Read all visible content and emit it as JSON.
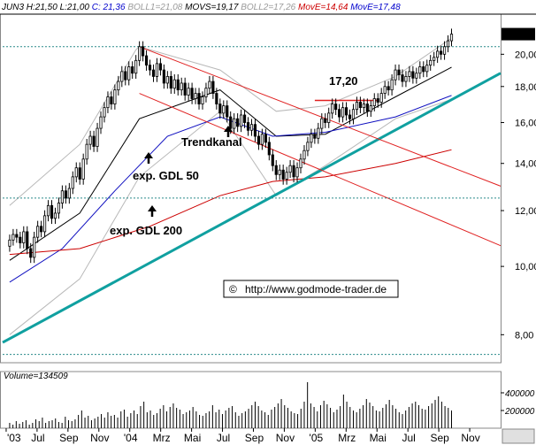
{
  "header": {
    "symbol_prefix": "JUN3 H:",
    "high": "21,50",
    "low_prefix": "L:",
    "low": "21,00",
    "close_prefix": "C:",
    "close": "21,36",
    "boll1": "BOLL1=21,08",
    "movs": "MOVS=19,17",
    "boll2": "BOLL2=17,26",
    "move1": "MovE=14,64",
    "move2": "MovE=17,48"
  },
  "price_box": "21,36",
  "annotations": {
    "trendkanal": "Trendkanal",
    "gdl50": "exp. GDL 50",
    "gdl200": "exp. GDL 200",
    "level": "17,20",
    "copyright": "©",
    "url": "http://www.godmode-trader.de"
  },
  "volume": {
    "label": "Volume=134509",
    "ticks": [
      "400000",
      "200000"
    ],
    "values": [
      60,
      40,
      80,
      50,
      70,
      90,
      40,
      60,
      100,
      80,
      120,
      60,
      80,
      90,
      110,
      70,
      60,
      130,
      90,
      80,
      100,
      150,
      200,
      120,
      140,
      90,
      110,
      130,
      160,
      120,
      180,
      140,
      150,
      120,
      190,
      210,
      130,
      170,
      200,
      160,
      250,
      300,
      180,
      200,
      150,
      170,
      220,
      260,
      190,
      240,
      280,
      230,
      210,
      160,
      180,
      200,
      240,
      190,
      150,
      140,
      170,
      190,
      260,
      180,
      210,
      160,
      200,
      230,
      250,
      180,
      140,
      170,
      190,
      220,
      260,
      300,
      250,
      200,
      180,
      150,
      210,
      240,
      280,
      330,
      260,
      230,
      190,
      170,
      160,
      220,
      300,
      520,
      280,
      240,
      190,
      260,
      310,
      270,
      230,
      180,
      210,
      250,
      380,
      300,
      240,
      200,
      180,
      220,
      260,
      330,
      290,
      250,
      200,
      190,
      230,
      270,
      320,
      260,
      220,
      180,
      160,
      200,
      240,
      280,
      300,
      260,
      220,
      210,
      250,
      280,
      320,
      360,
      300,
      250,
      230,
      200
    ]
  },
  "colors": {
    "candle": "#000000",
    "ema50": "#1010c0",
    "ema200": "#cc0000",
    "trend_channel": "#e02020",
    "trendline": "#10a0a0",
    "bollinger": "#b8b8b8",
    "sma": "#000000",
    "horizontal": "#2a8a8a",
    "header_blue": "#0000cc",
    "header_red": "#cc0000"
  },
  "chart_data": {
    "type": "candlestick",
    "title": "",
    "xlabel": "",
    "ylabel": "",
    "y_scale": "log",
    "ylim": [
      7.3,
      22.8
    ],
    "yticks": [
      8,
      10,
      12,
      14,
      16,
      18,
      20
    ],
    "ytick_labels": [
      "8,00",
      "10,00",
      "12,00",
      "14,00",
      "16,00",
      "18,00",
      "20,00"
    ],
    "x_tick_labels": [
      "'03",
      "Jul",
      "Sep",
      "Nov",
      "'04",
      "Mrz",
      "Mai",
      "Jul",
      "Sep",
      "Nov",
      "'05",
      "Mrz",
      "Mai",
      "Jul",
      "Sep",
      "Nov"
    ],
    "grid": false,
    "close_series": [
      10.9,
      11.1,
      11.0,
      10.8,
      11.2,
      10.6,
      10.3,
      11.0,
      11.4,
      11.2,
      11.8,
      12.2,
      11.7,
      11.9,
      12.3,
      12.8,
      12.5,
      12.9,
      13.4,
      13.8,
      13.3,
      14.2,
      14.9,
      15.3,
      14.8,
      15.7,
      16.3,
      16.8,
      17.4,
      17.0,
      17.8,
      18.3,
      18.9,
      18.4,
      19.2,
      18.8,
      19.6,
      20.5,
      19.9,
      19.3,
      19.0,
      18.6,
      19.4,
      19.0,
      18.2,
      18.6,
      17.9,
      18.4,
      17.8,
      18.2,
      17.5,
      17.9,
      17.3,
      17.6,
      17.0,
      17.4,
      17.9,
      18.3,
      17.6,
      17.0,
      16.5,
      16.9,
      16.3,
      15.7,
      16.2,
      15.8,
      16.4,
      16.0,
      15.6,
      15.9,
      15.3,
      14.9,
      15.4,
      15.0,
      14.4,
      13.9,
      13.5,
      13.7,
      13.3,
      13.6,
      13.9,
      13.4,
      13.8,
      14.2,
      14.6,
      15.0,
      15.4,
      15.2,
      15.7,
      16.2,
      16.0,
      16.5,
      17.0,
      16.7,
      16.3,
      16.8,
      16.4,
      16.2,
      16.7,
      17.1,
      16.8,
      17.0,
      16.6,
      16.9,
      17.3,
      17.1,
      17.6,
      18.0,
      17.8,
      18.4,
      19.0,
      18.7,
      18.3,
      18.6,
      18.9,
      18.5,
      18.8,
      19.2,
      18.9,
      19.3,
      19.6,
      19.8,
      20.2,
      20.0,
      20.5,
      20.9,
      21.36
    ],
    "series": [
      {
        "name": "BOLL1",
        "type": "line",
        "x": [
          0,
          20,
          36,
          37,
          60,
          76,
          90,
          110,
          126
        ],
        "values": [
          12.2,
          14.9,
          20.3,
          20.5,
          19.0,
          16.6,
          16.9,
          18.6,
          21.08
        ]
      },
      {
        "name": "MOVS",
        "type": "line",
        "x": [
          0,
          20,
          37,
          60,
          76,
          90,
          110,
          126
        ],
        "values": [
          10.2,
          11.9,
          16.2,
          17.8,
          15.3,
          15.4,
          17.4,
          19.17
        ]
      },
      {
        "name": "BOLL2",
        "type": "line",
        "x": [
          0,
          20,
          37,
          60,
          76,
          90,
          110,
          126
        ],
        "values": [
          8.0,
          9.6,
          13.4,
          16.6,
          12.6,
          13.9,
          16.2,
          17.26
        ]
      },
      {
        "name": "MovE",
        "type": "line",
        "x": [
          0,
          15,
          30,
          45,
          60,
          75,
          90,
          110,
          126
        ],
        "values": [
          9.5,
          10.6,
          12.8,
          15.3,
          16.3,
          15.3,
          15.5,
          16.3,
          17.48
        ]
      },
      {
        "name": "MovE",
        "type": "line",
        "x": [
          0,
          20,
          40,
          60,
          75,
          90,
          110,
          126
        ],
        "values": [
          10.4,
          10.6,
          11.4,
          12.6,
          13.2,
          13.4,
          14.0,
          14.64
        ]
      },
      {
        "name": "",
        "type": "line",
        "x": [
          -2,
          140
        ],
        "values": [
          7.8,
          18.8
        ]
      },
      {
        "name": "",
        "type": "line",
        "x": [
          37,
          140
        ],
        "values": [
          20.5,
          13.0
        ]
      },
      {
        "name": "",
        "type": "line",
        "x": [
          37,
          140
        ],
        "values": [
          17.6,
          10.7
        ]
      },
      {
        "name": "",
        "type": "line",
        "x": [
          87,
          105
        ],
        "values": [
          17.2,
          17.2
        ]
      },
      {
        "name": "",
        "type": "line",
        "x": [
          -2,
          140
        ],
        "values": [
          20.5,
          20.5
        ]
      },
      {
        "name": "",
        "type": "line",
        "x": [
          -2,
          140
        ],
        "values": [
          12.5,
          12.5
        ]
      },
      {
        "name": "",
        "type": "line",
        "x": [
          -2,
          140
        ],
        "values": [
          7.5,
          7.5
        ]
      }
    ]
  }
}
